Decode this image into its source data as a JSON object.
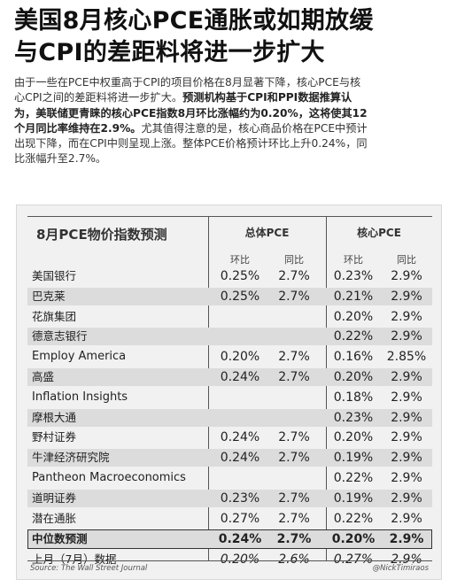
{
  "headline": {
    "line1": "美国8月核心PCE通胀或如期放缓",
    "line2": "与CPI的差距料将进一步扩大"
  },
  "intro": {
    "lines": [
      [
        {
          "t": "由于一些在PCE中权重高于CPI的项目价格在8月显著下降，核心PCE与核",
          "b": false
        }
      ],
      [
        {
          "t": "心CPI之间的差距料将进一步扩大。",
          "b": false
        },
        {
          "t": "预测机构基于CPI和PPI数据推算认",
          "b": true
        }
      ],
      [
        {
          "t": "为，美联储更青睐的核心PCE指数8月环比涨幅约为0.20%，这将使其12",
          "b": true
        }
      ],
      [
        {
          "t": "个月同比率维持在2.9%。",
          "b": true
        },
        {
          "t": "尤其值得注意的是，核心商品价格在PCE中预计",
          "b": false
        }
      ],
      [
        {
          "t": "出现下降，而在CPI中则呈现上涨。整体PCE价格预计环比上升0.24%，同",
          "b": false
        }
      ],
      [
        {
          "t": "比涨幅升至2.7%。",
          "b": false
        }
      ]
    ]
  },
  "table": {
    "title": "8月PCE物价指数预测",
    "group_headline": "总体PCE",
    "group_core": "核心PCE",
    "sub_mom": "环比",
    "sub_yoy": "同比",
    "rows": [
      {
        "name": "美国银行",
        "h_mom": "0.25%",
        "h_yoy": "2.7%",
        "c_mom": "0.23%",
        "c_yoy": "2.9%"
      },
      {
        "name": "巴克莱",
        "h_mom": "0.25%",
        "h_yoy": "2.7%",
        "c_mom": "0.21%",
        "c_yoy": "2.9%"
      },
      {
        "name": "花旗集团",
        "h_mom": "",
        "h_yoy": "",
        "c_mom": "0.20%",
        "c_yoy": "2.9%"
      },
      {
        "name": "德意志银行",
        "h_mom": "",
        "h_yoy": "",
        "c_mom": "0.22%",
        "c_yoy": "2.9%"
      },
      {
        "name": "Employ America",
        "h_mom": "0.20%",
        "h_yoy": "2.7%",
        "c_mom": "0.16%",
        "c_yoy": "2.85%"
      },
      {
        "name": "高盛",
        "h_mom": "0.24%",
        "h_yoy": "2.7%",
        "c_mom": "0.20%",
        "c_yoy": "2.9%"
      },
      {
        "name": "Inflation Insights",
        "h_mom": "",
        "h_yoy": "",
        "c_mom": "0.18%",
        "c_yoy": "2.9%"
      },
      {
        "name": "摩根大通",
        "h_mom": "",
        "h_yoy": "",
        "c_mom": "0.23%",
        "c_yoy": "2.9%"
      },
      {
        "name": "野村证券",
        "h_mom": "0.24%",
        "h_yoy": "2.7%",
        "c_mom": "0.20%",
        "c_yoy": "2.9%"
      },
      {
        "name": "牛津经济研究院",
        "h_mom": "0.24%",
        "h_yoy": "2.7%",
        "c_mom": "0.19%",
        "c_yoy": "2.9%"
      },
      {
        "name": "Pantheon Macroeconomics",
        "h_mom": "",
        "h_yoy": "",
        "c_mom": "0.22%",
        "c_yoy": "2.9%"
      },
      {
        "name": "道明证券",
        "h_mom": "0.23%",
        "h_yoy": "2.7%",
        "c_mom": "0.19%",
        "c_yoy": "2.9%"
      },
      {
        "name": "潜在通胀",
        "h_mom": "0.27%",
        "h_yoy": "2.7%",
        "c_mom": "0.22%",
        "c_yoy": "2.9%"
      }
    ],
    "median": {
      "name": "中位数预测",
      "h_mom": "0.24%",
      "h_yoy": "2.7%",
      "c_mom": "0.20%",
      "c_yoy": "2.9%"
    },
    "last_month": {
      "name": "上月（7月）数据",
      "h_mom": "0.20%",
      "h_yoy": "2.6%",
      "c_mom": "0.27%",
      "c_yoy": "2.9%"
    }
  },
  "footer": {
    "source": "Source: The Wall Street Journal",
    "handle": "@NickTimiraos"
  }
}
